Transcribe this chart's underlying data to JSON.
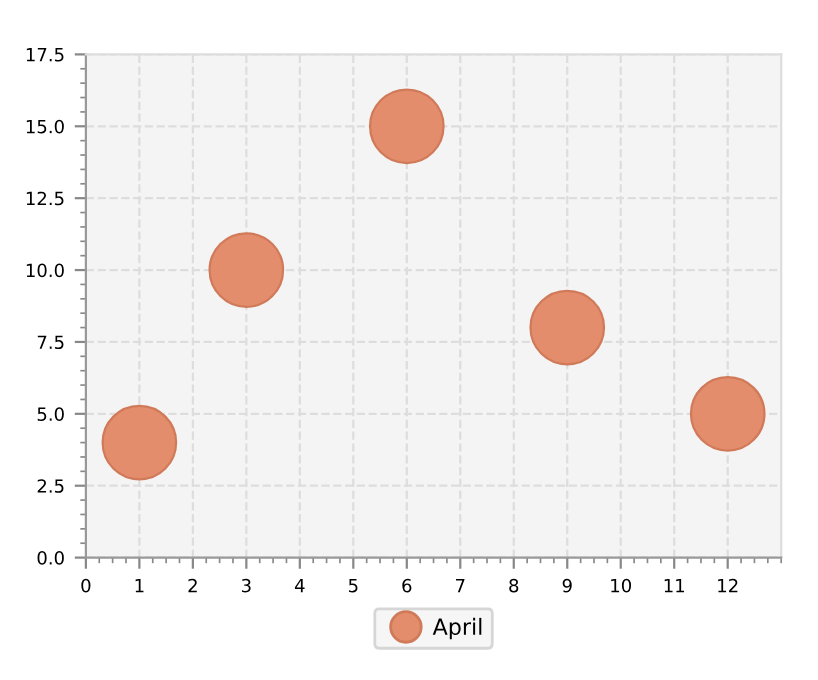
{
  "chart_data": {
    "type": "scatter",
    "x": [
      1,
      3,
      6,
      9,
      12
    ],
    "series": [
      {
        "name": "April",
        "color": "#e38d6c",
        "values": [
          4,
          10,
          15,
          8,
          5
        ]
      }
    ],
    "xlim": [
      0,
      13
    ],
    "xticks": [
      0,
      1,
      2,
      3,
      4,
      5,
      6,
      7,
      8,
      9,
      10,
      11,
      12
    ],
    "ylim": [
      0,
      17.5
    ],
    "yticks": [
      {
        "value": 0,
        "label": "0.0"
      },
      {
        "value": 2.5,
        "label": "2.5"
      },
      {
        "value": 5,
        "label": "5.0"
      },
      {
        "value": 7.5,
        "label": "7.5"
      },
      {
        "value": 10,
        "label": "10.0"
      },
      {
        "value": 12.5,
        "label": "12.5"
      },
      {
        "value": 15,
        "label": "15.0"
      },
      {
        "value": 17.5,
        "label": "17.5"
      }
    ],
    "grid": true,
    "legend": "bottom"
  }
}
